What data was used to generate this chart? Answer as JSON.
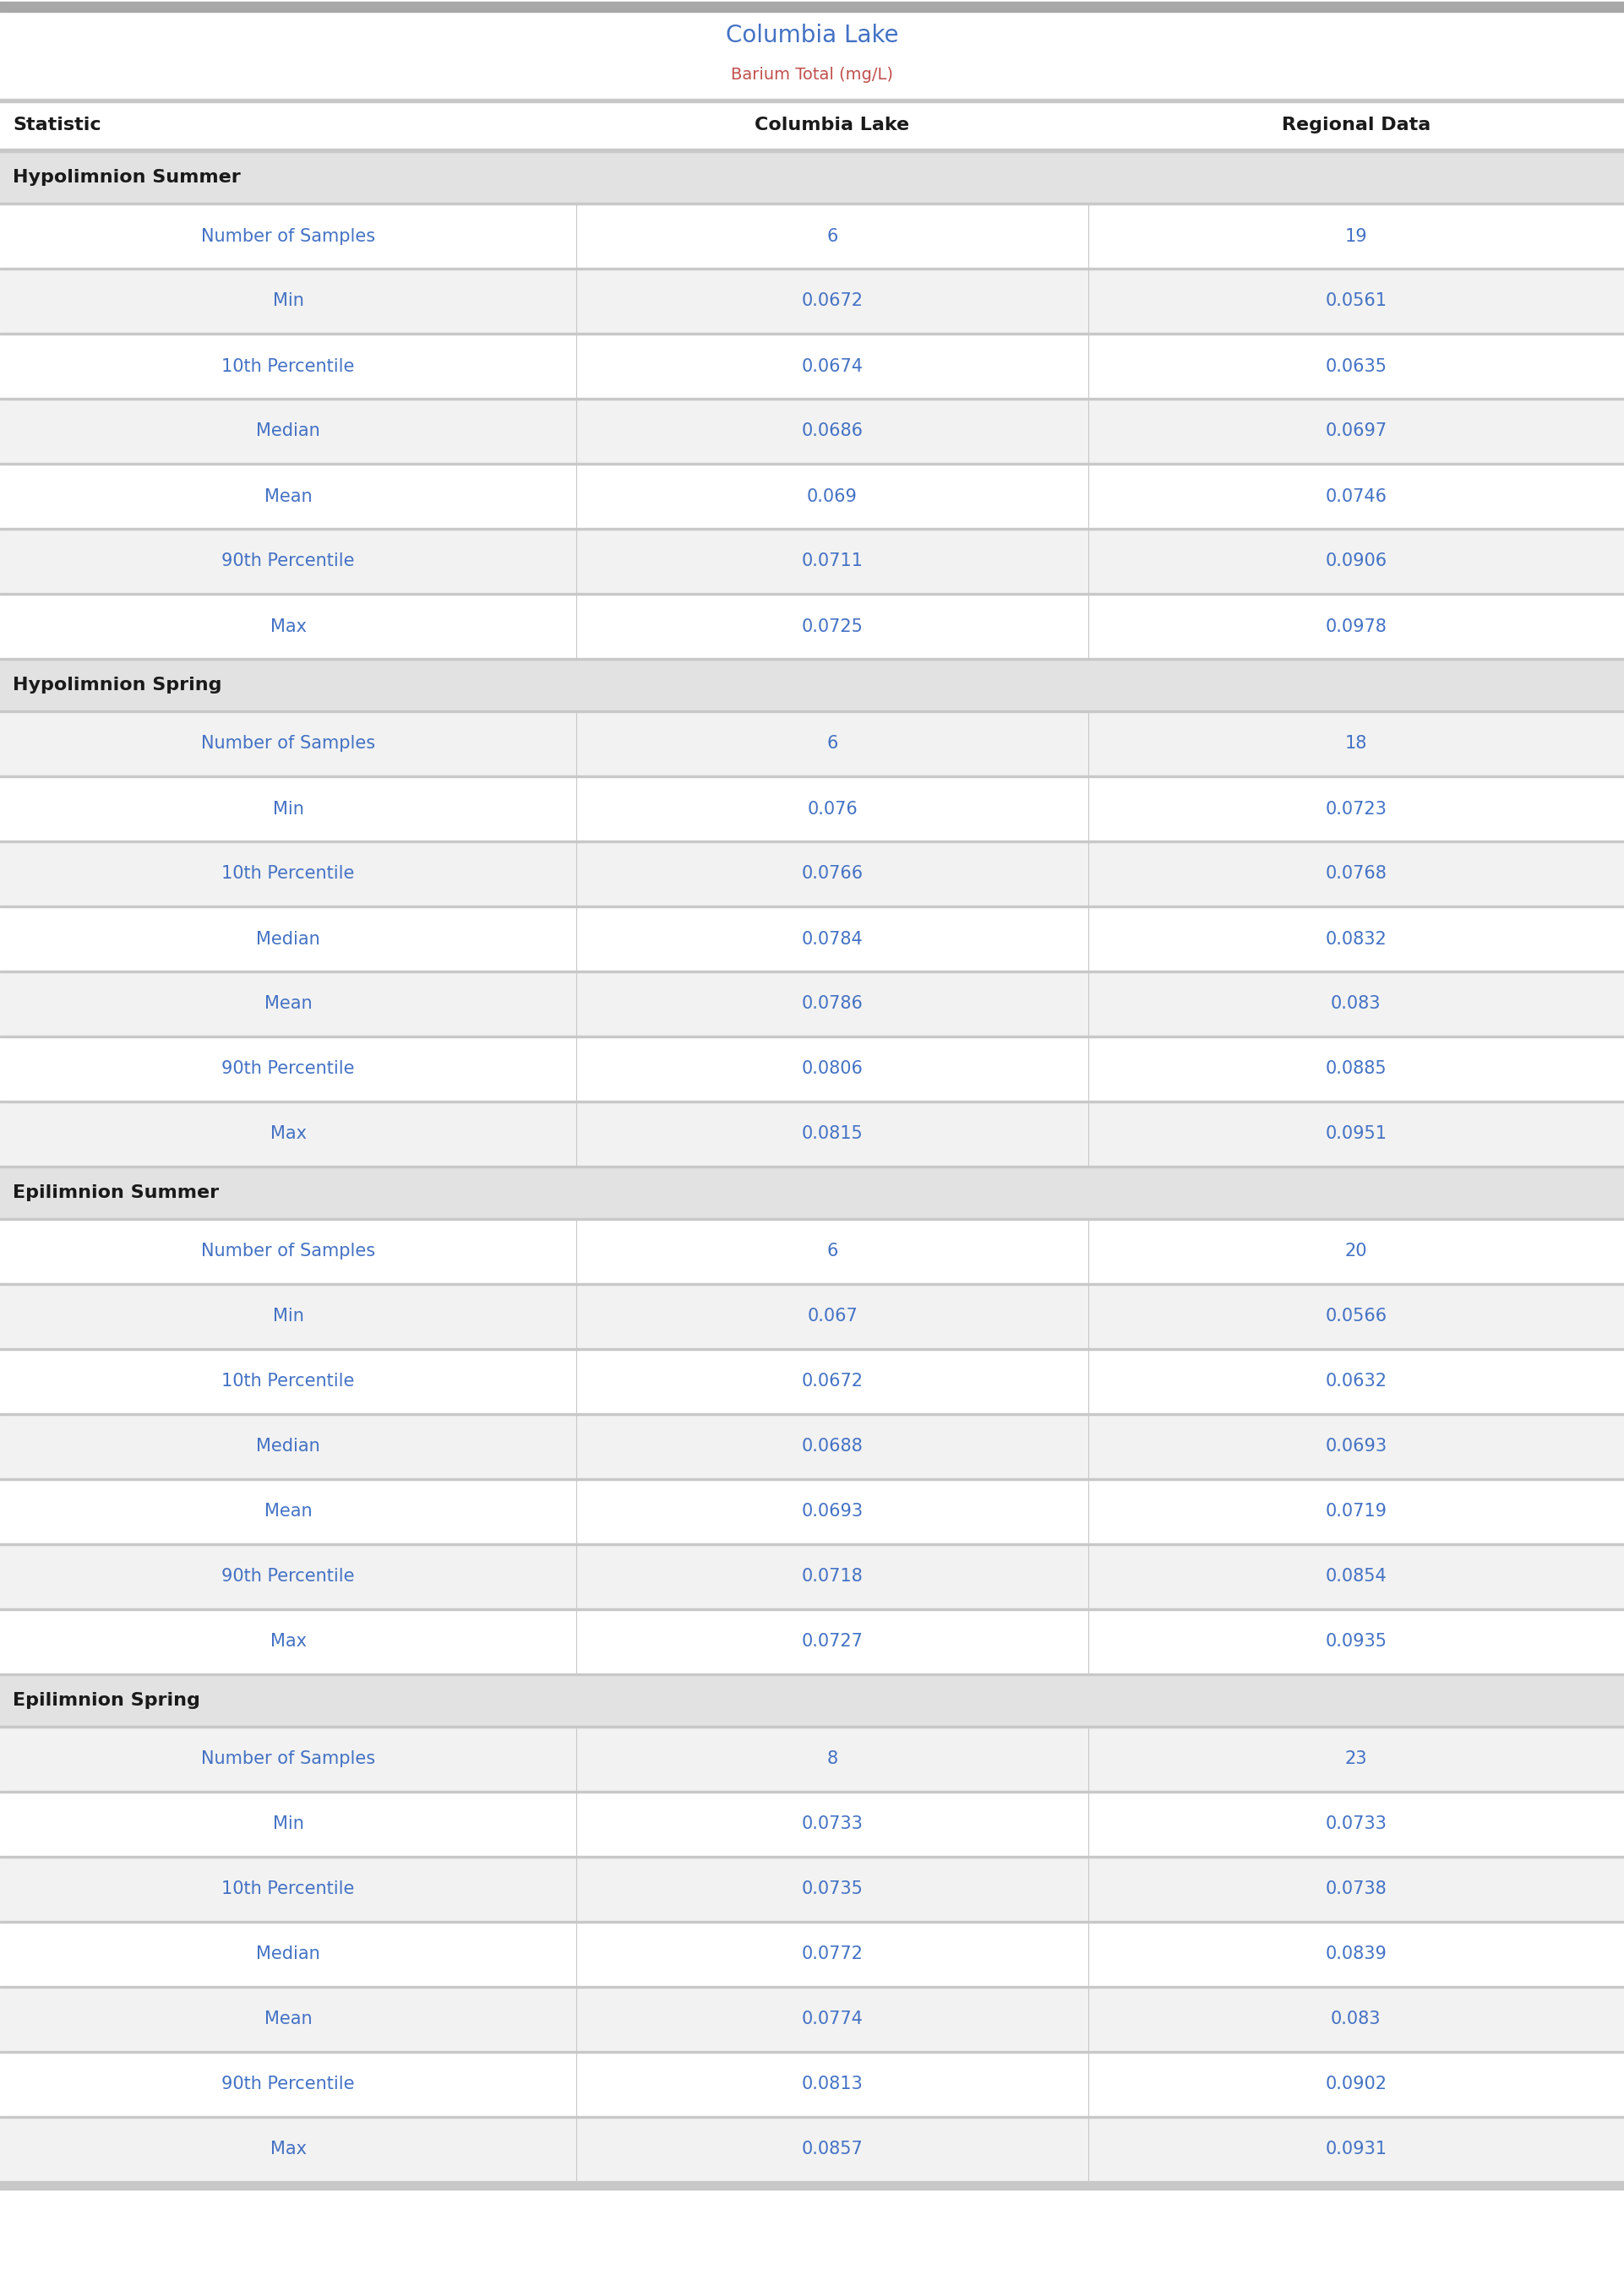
{
  "title": "Columbia Lake",
  "subtitle": "Barium Total (mg/L)",
  "col_headers": [
    "Statistic",
    "Columbia Lake",
    "Regional Data"
  ],
  "sections": [
    {
      "header": "Hypolimnion Summer",
      "rows": [
        [
          "Number of Samples",
          "6",
          "19"
        ],
        [
          "Min",
          "0.0672",
          "0.0561"
        ],
        [
          "10th Percentile",
          "0.0674",
          "0.0635"
        ],
        [
          "Median",
          "0.0686",
          "0.0697"
        ],
        [
          "Mean",
          "0.069",
          "0.0746"
        ],
        [
          "90th Percentile",
          "0.0711",
          "0.0906"
        ],
        [
          "Max",
          "0.0725",
          "0.0978"
        ]
      ]
    },
    {
      "header": "Hypolimnion Spring",
      "rows": [
        [
          "Number of Samples",
          "6",
          "18"
        ],
        [
          "Min",
          "0.076",
          "0.0723"
        ],
        [
          "10th Percentile",
          "0.0766",
          "0.0768"
        ],
        [
          "Median",
          "0.0784",
          "0.0832"
        ],
        [
          "Mean",
          "0.0786",
          "0.083"
        ],
        [
          "90th Percentile",
          "0.0806",
          "0.0885"
        ],
        [
          "Max",
          "0.0815",
          "0.0951"
        ]
      ]
    },
    {
      "header": "Epilimnion Summer",
      "rows": [
        [
          "Number of Samples",
          "6",
          "20"
        ],
        [
          "Min",
          "0.067",
          "0.0566"
        ],
        [
          "10th Percentile",
          "0.0672",
          "0.0632"
        ],
        [
          "Median",
          "0.0688",
          "0.0693"
        ],
        [
          "Mean",
          "0.0693",
          "0.0719"
        ],
        [
          "90th Percentile",
          "0.0718",
          "0.0854"
        ],
        [
          "Max",
          "0.0727",
          "0.0935"
        ]
      ]
    },
    {
      "header": "Epilimnion Spring",
      "rows": [
        [
          "Number of Samples",
          "8",
          "23"
        ],
        [
          "Min",
          "0.0733",
          "0.0733"
        ],
        [
          "10th Percentile",
          "0.0735",
          "0.0738"
        ],
        [
          "Median",
          "0.0772",
          "0.0839"
        ],
        [
          "Mean",
          "0.0774",
          "0.083"
        ],
        [
          "90th Percentile",
          "0.0813",
          "0.0902"
        ],
        [
          "Max",
          "0.0857",
          "0.0931"
        ]
      ]
    }
  ],
  "title_color": "#4472c4",
  "subtitle_color": "#c0504d",
  "section_header_bg_color": "#e2e2e2",
  "col_header_text_color": "#1a1a1a",
  "data_text_color": "#4472c4",
  "section_header_text_color": "#1a1a1a",
  "divider_color": "#c8c8c8",
  "top_bar_color": "#a8a8a8",
  "row_bg_odd": "#ffffff",
  "row_bg_even": "#f2f2f2",
  "bottom_bar_color": "#c8c8c8",
  "col_split1": 0.355,
  "col_split2": 0.67,
  "title_fontsize": 20,
  "subtitle_fontsize": 14,
  "col_header_fontsize": 16,
  "section_header_fontsize": 16,
  "data_fontsize": 15
}
